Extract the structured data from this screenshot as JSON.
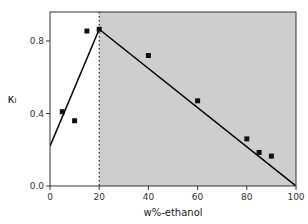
{
  "chart_data": {
    "type": "scatter",
    "title": "",
    "xlabel": "w%-ethanol",
    "ylabel": "κₗ",
    "xlim": [
      0,
      100
    ],
    "ylim": [
      0.0,
      0.96
    ],
    "xticks": [
      0,
      20,
      40,
      60,
      80,
      100
    ],
    "yticks": [
      {
        "value": 0.0,
        "label": "0.0"
      },
      0.4,
      0.8
    ],
    "grid": false,
    "shaded_region": {
      "x": [
        20,
        100
      ],
      "color": "#cecece"
    },
    "vline": {
      "x": 20,
      "color": "#000000",
      "line_style": "dotted"
    },
    "series": [
      {
        "type": "line",
        "color": "#000000",
        "line_style": "solid",
        "x": [
          0,
          20
        ],
        "values": [
          0.22,
          0.865
        ]
      },
      {
        "type": "line",
        "color": "#000000",
        "line_style": "solid",
        "x": [
          20,
          100
        ],
        "values": [
          0.865,
          0.0
        ]
      },
      {
        "type": "scatter",
        "color": "#111111",
        "marker": "square",
        "x": [
          5,
          10,
          15,
          20,
          40,
          60,
          80,
          85,
          90
        ],
        "values": [
          0.41,
          0.36,
          0.855,
          0.865,
          0.72,
          0.47,
          0.26,
          0.185,
          0.165
        ]
      }
    ]
  }
}
